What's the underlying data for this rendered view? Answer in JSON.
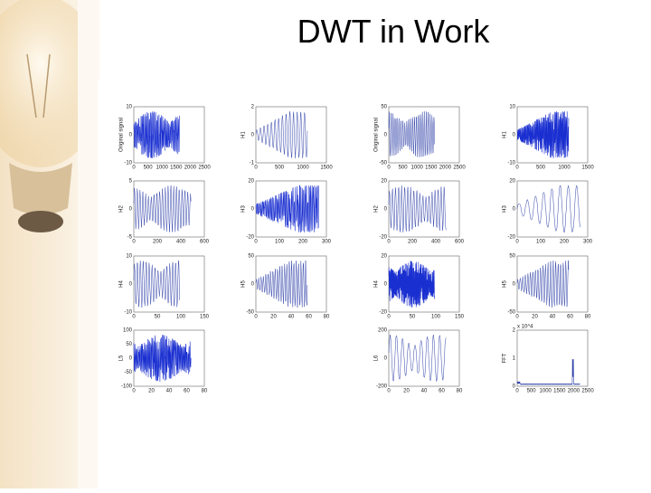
{
  "title": "DWT in Work",
  "groups": [
    {
      "panels": [
        {
          "ylabel": "Original signal",
          "yticks": [
            "10",
            "0",
            "-10"
          ],
          "xticks": [
            "0",
            "500",
            "1000",
            "1500",
            "2000",
            "2500"
          ]
        },
        {
          "ylabel": "H1",
          "yticks": [
            "2",
            "0",
            "-1"
          ],
          "xticks": [
            "0",
            "500",
            "1000",
            "1500"
          ]
        },
        {
          "ylabel": "H2",
          "yticks": [
            "5",
            "0",
            "-5"
          ],
          "xticks": [
            "0",
            "200",
            "400",
            "600"
          ]
        },
        {
          "ylabel": "H3",
          "yticks": [
            "20",
            "0",
            "-20"
          ],
          "xticks": [
            "0",
            "100",
            "200",
            "300"
          ]
        },
        {
          "ylabel": "H4",
          "yticks": [
            "10",
            "0",
            "-10"
          ],
          "xticks": [
            "0",
            "50",
            "100",
            "150"
          ]
        },
        {
          "ylabel": "H5",
          "yticks": [
            "50",
            "0",
            "-50"
          ],
          "xticks": [
            "0",
            "20",
            "40",
            "60",
            "80"
          ]
        },
        {
          "ylabel": "L5",
          "yticks": [
            "100",
            "50",
            "0",
            "-50",
            "-100"
          ],
          "xticks": [
            "0",
            "20",
            "40",
            "60",
            "80"
          ]
        }
      ]
    },
    {
      "panels": [
        {
          "ylabel": "Original signal",
          "yticks": [
            "50",
            "0",
            "-50"
          ],
          "xticks": [
            "0",
            "500",
            "1000",
            "1500",
            "2000",
            "2500"
          ]
        },
        {
          "ylabel": "H1",
          "yticks": [
            "10",
            "0",
            "-10"
          ],
          "xticks": [
            "0",
            "500",
            "1000",
            "1500"
          ]
        },
        {
          "ylabel": "H2",
          "yticks": [
            "20",
            "0",
            "-20"
          ],
          "xticks": [
            "0",
            "200",
            "400",
            "600"
          ]
        },
        {
          "ylabel": "H3",
          "yticks": [
            "20",
            "0",
            "-20"
          ],
          "xticks": [
            "0",
            "100",
            "200",
            "300"
          ]
        },
        {
          "ylabel": "H4",
          "yticks": [
            "20",
            "0",
            "-20"
          ],
          "xticks": [
            "0",
            "50",
            "100",
            "150"
          ]
        },
        {
          "ylabel": "H5",
          "yticks": [
            "50",
            "0",
            "-50"
          ],
          "xticks": [
            "0",
            "20",
            "40",
            "60",
            "80"
          ]
        },
        {
          "ylabel": "L6",
          "yticks": [
            "200",
            "0",
            "-200"
          ],
          "xticks": [
            "0",
            "20",
            "40",
            "60",
            "80"
          ]
        },
        {
          "ylabel": "FFT",
          "yticks": [
            "2",
            "1",
            "0"
          ],
          "xticks": [
            "0",
            "500",
            "1000",
            "1500",
            "2000",
            "2500"
          ],
          "note": "x 10^4"
        }
      ]
    }
  ]
}
